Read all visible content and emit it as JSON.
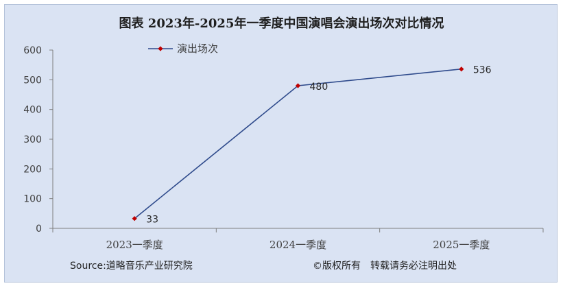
{
  "chart_data": {
    "type": "line",
    "title": "图表 2023年-2025年一季度中国演唱会演出场次对比情况",
    "categories": [
      "2023一季度",
      "2024一季度",
      "2025一季度"
    ],
    "series": [
      {
        "name": "演出场次",
        "values": [
          33,
          480,
          536
        ],
        "color": "#2f4b8c",
        "marker_color": "#c00000"
      }
    ],
    "ylim": [
      0,
      600
    ],
    "yticks": [
      0,
      100,
      200,
      300,
      400,
      500,
      600
    ],
    "grid": false,
    "legend": "top-left"
  },
  "footer": {
    "source": "Source:道略音乐产业研究院",
    "copyright": "©版权所有　转载请务必注明出处"
  }
}
